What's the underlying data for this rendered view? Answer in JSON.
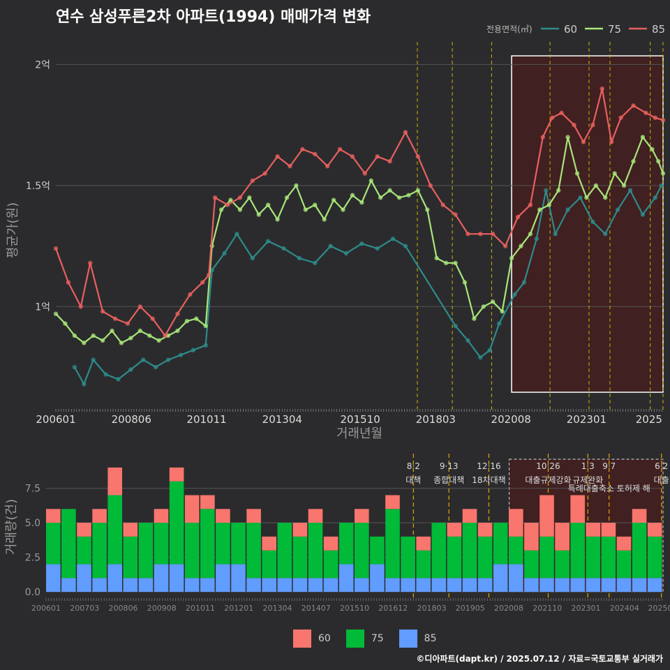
{
  "title": "연수 삼성푸른2차 아파트(1994) 매매가격 변화",
  "credit": "©디아파트(dapt.kr) / 2025.07.12 / 자료=국토교통부 실거래가",
  "colors": {
    "s60": "#2e8b8b",
    "s75": "#a8e67a",
    "s85": "#e9605f",
    "b60": "#f8766d",
    "b75": "#00ba38",
    "b85": "#619cff"
  },
  "chart_data": [
    {
      "type": "line",
      "ylabel": "평균가(원)",
      "xlabel": "거래년월",
      "legend_title": "전용면적(㎡)",
      "ylim": [
        0.58,
        2.05
      ],
      "y_ticks": [
        {
          "v": 1.0,
          "label": "1억"
        },
        {
          "v": 1.5,
          "label": "1.5억"
        },
        {
          "v": 2.0,
          "label": "2억"
        }
      ],
      "x_ticks": [
        "200601",
        "200806",
        "201011",
        "201304",
        "201510",
        "201803",
        "202008",
        "202301",
        "2025"
      ],
      "vlines": [
        2017.58,
        2018.7,
        2019.96,
        2021.83,
        2023.08,
        2023.75,
        2025.04,
        2025.45
      ],
      "highlight": [
        2020.6,
        2025.45
      ],
      "series": [
        {
          "name": "60",
          "points": [
            [
              2006.6,
              0.75
            ],
            [
              2006.9,
              0.68
            ],
            [
              2007.2,
              0.78
            ],
            [
              2007.6,
              0.72
            ],
            [
              2008.0,
              0.7
            ],
            [
              2008.4,
              0.74
            ],
            [
              2008.8,
              0.78
            ],
            [
              2009.2,
              0.75
            ],
            [
              2009.6,
              0.78
            ],
            [
              2010.0,
              0.8
            ],
            [
              2010.4,
              0.82
            ],
            [
              2010.8,
              0.84
            ],
            [
              2011.0,
              1.15
            ],
            [
              2011.4,
              1.22
            ],
            [
              2011.8,
              1.3
            ],
            [
              2012.3,
              1.2
            ],
            [
              2012.8,
              1.27
            ],
            [
              2013.3,
              1.24
            ],
            [
              2013.8,
              1.2
            ],
            [
              2014.3,
              1.18
            ],
            [
              2014.8,
              1.25
            ],
            [
              2015.3,
              1.22
            ],
            [
              2015.8,
              1.26
            ],
            [
              2016.3,
              1.24
            ],
            [
              2016.8,
              1.28
            ],
            [
              2017.2,
              1.25
            ],
            [
              2018.8,
              0.92
            ],
            [
              2019.2,
              0.86
            ],
            [
              2019.6,
              0.79
            ],
            [
              2019.9,
              0.82
            ],
            [
              2020.2,
              0.93
            ],
            [
              2020.7,
              1.05
            ],
            [
              2021.0,
              1.1
            ],
            [
              2021.4,
              1.28
            ],
            [
              2021.7,
              1.48
            ],
            [
              2022.0,
              1.3
            ],
            [
              2022.4,
              1.4
            ],
            [
              2022.8,
              1.45
            ],
            [
              2023.2,
              1.35
            ],
            [
              2023.6,
              1.3
            ],
            [
              2024.0,
              1.4
            ],
            [
              2024.4,
              1.48
            ],
            [
              2024.8,
              1.38
            ],
            [
              2025.2,
              1.45
            ],
            [
              2025.4,
              1.5
            ]
          ]
        },
        {
          "name": "75",
          "points": [
            [
              2006.0,
              0.97
            ],
            [
              2006.3,
              0.93
            ],
            [
              2006.6,
              0.88
            ],
            [
              2006.9,
              0.85
            ],
            [
              2007.2,
              0.88
            ],
            [
              2007.5,
              0.86
            ],
            [
              2007.8,
              0.9
            ],
            [
              2008.1,
              0.85
            ],
            [
              2008.4,
              0.87
            ],
            [
              2008.7,
              0.9
            ],
            [
              2009.0,
              0.88
            ],
            [
              2009.3,
              0.86
            ],
            [
              2009.6,
              0.88
            ],
            [
              2009.9,
              0.9
            ],
            [
              2010.2,
              0.94
            ],
            [
              2010.5,
              0.95
            ],
            [
              2010.8,
              0.92
            ],
            [
              2011.0,
              1.25
            ],
            [
              2011.3,
              1.4
            ],
            [
              2011.6,
              1.44
            ],
            [
              2011.9,
              1.4
            ],
            [
              2012.2,
              1.45
            ],
            [
              2012.5,
              1.38
            ],
            [
              2012.8,
              1.42
            ],
            [
              2013.1,
              1.36
            ],
            [
              2013.4,
              1.45
            ],
            [
              2013.7,
              1.5
            ],
            [
              2014.0,
              1.4
            ],
            [
              2014.3,
              1.42
            ],
            [
              2014.6,
              1.36
            ],
            [
              2014.9,
              1.44
            ],
            [
              2015.2,
              1.4
            ],
            [
              2015.5,
              1.46
            ],
            [
              2015.8,
              1.43
            ],
            [
              2016.1,
              1.52
            ],
            [
              2016.4,
              1.45
            ],
            [
              2016.7,
              1.48
            ],
            [
              2017.0,
              1.45
            ],
            [
              2017.3,
              1.46
            ],
            [
              2017.6,
              1.48
            ],
            [
              2017.9,
              1.4
            ],
            [
              2018.2,
              1.2
            ],
            [
              2018.5,
              1.18
            ],
            [
              2018.8,
              1.18
            ],
            [
              2019.1,
              1.1
            ],
            [
              2019.4,
              0.95
            ],
            [
              2019.7,
              1.0
            ],
            [
              2020.0,
              1.02
            ],
            [
              2020.3,
              0.98
            ],
            [
              2020.6,
              1.2
            ],
            [
              2020.9,
              1.25
            ],
            [
              2021.2,
              1.3
            ],
            [
              2021.5,
              1.4
            ],
            [
              2021.8,
              1.42
            ],
            [
              2022.1,
              1.48
            ],
            [
              2022.4,
              1.7
            ],
            [
              2022.7,
              1.55
            ],
            [
              2023.0,
              1.45
            ],
            [
              2023.3,
              1.5
            ],
            [
              2023.6,
              1.45
            ],
            [
              2023.9,
              1.55
            ],
            [
              2024.2,
              1.5
            ],
            [
              2024.5,
              1.6
            ],
            [
              2024.8,
              1.7
            ],
            [
              2025.1,
              1.65
            ],
            [
              2025.3,
              1.6
            ],
            [
              2025.45,
              1.55
            ]
          ]
        },
        {
          "name": "85",
          "points": [
            [
              2006.0,
              1.24
            ],
            [
              2006.4,
              1.1
            ],
            [
              2006.8,
              1.0
            ],
            [
              2007.1,
              1.18
            ],
            [
              2007.5,
              0.98
            ],
            [
              2007.9,
              0.95
            ],
            [
              2008.3,
              0.93
            ],
            [
              2008.7,
              1.0
            ],
            [
              2009.1,
              0.95
            ],
            [
              2009.5,
              0.88
            ],
            [
              2009.9,
              0.97
            ],
            [
              2010.3,
              1.05
            ],
            [
              2010.7,
              1.1
            ],
            [
              2010.9,
              1.13
            ],
            [
              2011.1,
              1.45
            ],
            [
              2011.5,
              1.42
            ],
            [
              2011.9,
              1.45
            ],
            [
              2012.3,
              1.52
            ],
            [
              2012.7,
              1.55
            ],
            [
              2013.1,
              1.62
            ],
            [
              2013.5,
              1.58
            ],
            [
              2013.9,
              1.65
            ],
            [
              2014.3,
              1.63
            ],
            [
              2014.7,
              1.58
            ],
            [
              2015.1,
              1.65
            ],
            [
              2015.5,
              1.62
            ],
            [
              2015.9,
              1.55
            ],
            [
              2016.3,
              1.62
            ],
            [
              2016.7,
              1.6
            ],
            [
              2017.2,
              1.72
            ],
            [
              2017.6,
              1.62
            ],
            [
              2018.0,
              1.5
            ],
            [
              2018.4,
              1.42
            ],
            [
              2018.8,
              1.38
            ],
            [
              2019.2,
              1.3
            ],
            [
              2019.6,
              1.3
            ],
            [
              2020.0,
              1.3
            ],
            [
              2020.4,
              1.25
            ],
            [
              2020.8,
              1.37
            ],
            [
              2021.2,
              1.42
            ],
            [
              2021.6,
              1.7
            ],
            [
              2021.9,
              1.78
            ],
            [
              2022.2,
              1.8
            ],
            [
              2022.6,
              1.75
            ],
            [
              2022.9,
              1.68
            ],
            [
              2023.2,
              1.75
            ],
            [
              2023.5,
              1.9
            ],
            [
              2023.8,
              1.68
            ],
            [
              2024.1,
              1.78
            ],
            [
              2024.5,
              1.83
            ],
            [
              2024.9,
              1.8
            ],
            [
              2025.2,
              1.78
            ],
            [
              2025.45,
              1.77
            ]
          ]
        }
      ]
    },
    {
      "type": "bar",
      "ylabel": "거래량(건)",
      "ylim": [
        0,
        9.5
      ],
      "y_ticks": [
        {
          "v": 0,
          "label": "0.0"
        },
        {
          "v": 2.5,
          "label": "2.5"
        },
        {
          "v": 5,
          "label": "5.0"
        },
        {
          "v": 7.5,
          "label": "7.5"
        }
      ],
      "x_ticks": [
        "200601",
        "200703",
        "200806",
        "200908",
        "201011",
        "201201",
        "201304",
        "201407",
        "201510",
        "201612",
        "201803",
        "201905",
        "202008",
        "202110",
        "202301",
        "202404",
        "20250"
      ],
      "policies": [
        {
          "x": 2017.58,
          "date": "8·2",
          "name": "대책"
        },
        {
          "x": 2018.7,
          "date": "9·13",
          "name": "종합대책"
        },
        {
          "x": 2019.96,
          "date": "12·16",
          "name": "18차대책"
        },
        {
          "x": 2021.83,
          "date": "10·26",
          "name": "대출규제강화"
        },
        {
          "x": 2023.08,
          "date": "1·3",
          "name": "규제완화"
        },
        {
          "x": 2023.75,
          "date": "9·7",
          "name": "특례대출축소 토허제 해"
        },
        {
          "x": 2025.4,
          "date": "6·2",
          "name": "대출"
        }
      ],
      "legend": [
        "60",
        "75",
        "85"
      ],
      "series": [
        {
          "name": "85",
          "volume": [
            2,
            1,
            2,
            1,
            2,
            1,
            1,
            2,
            2,
            1,
            1,
            2,
            2,
            1,
            1,
            1,
            1,
            1,
            1,
            2,
            1,
            2,
            1,
            1,
            1,
            1,
            1,
            1,
            1,
            2,
            2,
            1,
            1,
            1,
            1,
            1,
            1,
            1,
            1,
            1
          ]
        },
        {
          "name": "75",
          "volume": [
            3,
            5,
            2,
            4,
            5,
            3,
            4,
            3,
            6,
            4,
            5,
            3,
            3,
            4,
            2,
            4,
            3,
            4,
            2,
            3,
            4,
            2,
            5,
            3,
            2,
            4,
            3,
            4,
            3,
            3,
            2,
            2,
            3,
            2,
            4,
            3,
            3,
            2,
            4,
            3
          ]
        },
        {
          "name": "60",
          "volume": [
            1,
            0,
            1,
            1,
            2,
            1,
            0,
            1,
            1,
            2,
            1,
            1,
            0,
            1,
            1,
            0,
            1,
            1,
            1,
            0,
            1,
            0,
            1,
            0,
            1,
            0,
            1,
            1,
            1,
            0,
            2,
            2,
            3,
            2,
            2,
            1,
            1,
            1,
            1,
            1
          ]
        }
      ]
    }
  ]
}
